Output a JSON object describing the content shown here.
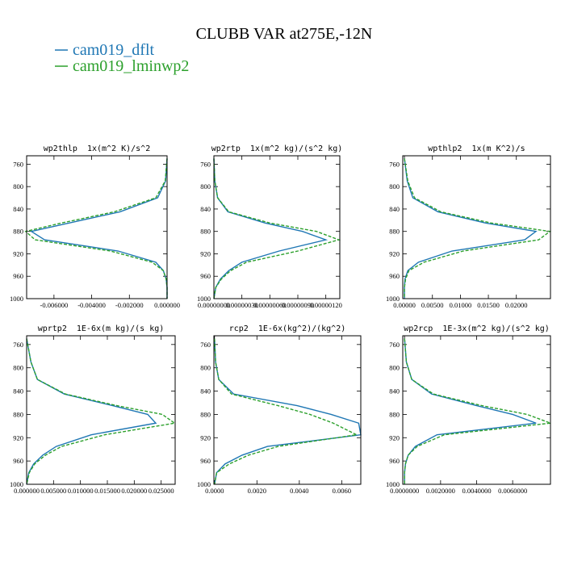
{
  "title": "CLUBB VAR at275E,-12N",
  "chart_data": [
    {
      "type": "line",
      "title": "wp2thlp  1x(m^2 K)/s^2",
      "y": [
        750,
        790,
        820,
        845,
        865,
        880,
        895,
        915,
        935,
        950,
        965,
        980,
        1000
      ],
      "ylim": [
        745,
        1000
      ],
      "yticks": [
        760,
        800,
        840,
        880,
        920,
        960,
        1000
      ],
      "xlim": [
        -0.00745,
        0.0
      ],
      "xticks": [
        {
          "value": -0.006,
          "label": "-0.006000"
        },
        {
          "value": -0.004,
          "label": "-0.004000"
        },
        {
          "value": -0.002,
          "label": "-0.002000"
        },
        {
          "value": 0,
          "label": "0.000000"
        }
      ],
      "series": [
        {
          "name": "cam019_dflt",
          "color": "#1f77b4",
          "linestyle": "solid",
          "values": [
            0,
            -8e-05,
            -0.0005,
            -0.0025,
            -0.0052,
            -0.0072,
            -0.0065,
            -0.0026,
            -0.0006,
            -0.0002,
            -5e-05,
            0,
            0
          ]
        },
        {
          "name": "cam019_lminwp2",
          "color": "#2ca02c",
          "linestyle": "dashed",
          "values": [
            0,
            -0.0001,
            -0.0006,
            -0.0028,
            -0.0056,
            -0.0075,
            -0.007,
            -0.003,
            -0.0008,
            -0.0002,
            -5e-05,
            0,
            0
          ]
        }
      ]
    },
    {
      "type": "line",
      "title": "wp2rtp  1x(m^2 kg)/(s^2 kg)",
      "y": [
        750,
        790,
        820,
        845,
        865,
        880,
        895,
        915,
        935,
        950,
        965,
        980,
        1000
      ],
      "ylim": [
        745,
        1000
      ],
      "yticks": [
        760,
        800,
        840,
        880,
        920,
        960,
        1000
      ],
      "xlim": [
        0,
        1.35e-06
      ],
      "xticks": [
        {
          "value": 0,
          "label": "0.00000000"
        },
        {
          "value": 3e-07,
          "label": "0.00000030"
        },
        {
          "value": 6e-07,
          "label": "0.00000060"
        },
        {
          "value": 9e-07,
          "label": "0.00000090"
        },
        {
          "value": 1.2e-06,
          "label": "0.00000120"
        }
      ],
      "series": [
        {
          "color": "#1f77b4",
          "linestyle": "solid",
          "values": [
            0,
            1e-08,
            4e-08,
            1.5e-07,
            5.5e-07,
            9.5e-07,
            1.2e-06,
            7e-07,
            3e-07,
            1.6e-07,
            7e-08,
            2e-08,
            0
          ]
        },
        {
          "color": "#2ca02c",
          "linestyle": "dashed",
          "values": [
            0,
            1e-08,
            4e-08,
            1.6e-07,
            6e-07,
            1.1e-06,
            1.34e-06,
            9e-07,
            3.5e-07,
            1.8e-07,
            8e-08,
            2e-08,
            0
          ]
        }
      ]
    },
    {
      "type": "line",
      "title": "wpthlp2  1x(m K^2)/s",
      "y": [
        750,
        790,
        820,
        845,
        865,
        880,
        895,
        915,
        935,
        950,
        965,
        980,
        1000
      ],
      "ylim": [
        745,
        1000
      ],
      "yticks": [
        760,
        800,
        840,
        880,
        920,
        960,
        1000
      ],
      "xlim": [
        -0.0003,
        0.0261
      ],
      "xticks": [
        {
          "value": 0,
          "label": "0.00000"
        },
        {
          "value": 0.005,
          "label": "0.00500"
        },
        {
          "value": 0.01,
          "label": "0.01000"
        },
        {
          "value": 0.015,
          "label": "0.01500"
        },
        {
          "value": 0.02,
          "label": "0.02000"
        }
      ],
      "series": [
        {
          "color": "#1f77b4",
          "linestyle": "solid",
          "values": [
            0,
            0.0005,
            0.0015,
            0.006,
            0.0145,
            0.0235,
            0.0215,
            0.0085,
            0.0025,
            0.0006,
            0.0001,
            0,
            0
          ]
        },
        {
          "color": "#2ca02c",
          "linestyle": "dashed",
          "values": [
            0,
            0.0006,
            0.0018,
            0.0065,
            0.0155,
            0.026,
            0.024,
            0.0105,
            0.0035,
            0.0008,
            0.0002,
            0,
            0
          ]
        }
      ]
    },
    {
      "type": "line",
      "title": "wprtp2  1E-6x(m kg)/(s kg)",
      "y": [
        750,
        790,
        820,
        845,
        865,
        880,
        895,
        915,
        935,
        950,
        965,
        980,
        1000
      ],
      "ylim": [
        745,
        1000
      ],
      "yticks": [
        760,
        800,
        840,
        880,
        920,
        960,
        1000
      ],
      "xlim": [
        0,
        0.0276
      ],
      "xticks": [
        {
          "value": 0,
          "label": "0.000000"
        },
        {
          "value": 0.005,
          "label": "0.005000"
        },
        {
          "value": 0.01,
          "label": "0.010000"
        },
        {
          "value": 0.015,
          "label": "0.015000"
        },
        {
          "value": 0.02,
          "label": "0.020000"
        },
        {
          "value": 0.025,
          "label": "0.025000"
        }
      ],
      "series": [
        {
          "color": "#1f77b4",
          "linestyle": "solid",
          "values": [
            0,
            0.0008,
            0.002,
            0.007,
            0.016,
            0.0225,
            0.024,
            0.012,
            0.0055,
            0.003,
            0.0013,
            0.0004,
            0
          ]
        },
        {
          "color": "#2ca02c",
          "linestyle": "dashed",
          "values": [
            0,
            0.0008,
            0.002,
            0.0072,
            0.0168,
            0.0252,
            0.0275,
            0.0145,
            0.0065,
            0.0035,
            0.0015,
            0.0005,
            0
          ]
        }
      ]
    },
    {
      "type": "line",
      "title": "rcp2  1E-6x(kg^2)/(kg^2)",
      "y": [
        750,
        790,
        820,
        845,
        865,
        880,
        895,
        915,
        935,
        950,
        965,
        980,
        1000
      ],
      "ylim": [
        745,
        1000
      ],
      "yticks": [
        760,
        800,
        840,
        880,
        920,
        960,
        1000
      ],
      "xlim": [
        -3e-05,
        0.0069
      ],
      "xticks": [
        {
          "value": 0,
          "label": "0.0000"
        },
        {
          "value": 0.002,
          "label": "0.0020"
        },
        {
          "value": 0.004,
          "label": "0.0040"
        },
        {
          "value": 0.006,
          "label": "0.0060"
        }
      ],
      "series": [
        {
          "color": "#1f77b4",
          "linestyle": "solid",
          "values": [
            0,
            5e-05,
            0.0002,
            0.0009,
            0.0039,
            0.0055,
            0.0068,
            0.0069,
            0.0025,
            0.0013,
            0.0005,
            0.0001,
            0
          ]
        },
        {
          "color": "#2ca02c",
          "linestyle": "dashed",
          "values": [
            0,
            5e-05,
            0.0002,
            0.0008,
            0.003,
            0.0045,
            0.0056,
            0.0067,
            0.003,
            0.0016,
            0.0007,
            0.0001,
            0
          ]
        }
      ]
    },
    {
      "type": "line",
      "title": "wp2rcp  1E-3x(m^2 kg)/(s^2 kg)",
      "y": [
        750,
        790,
        820,
        845,
        865,
        880,
        895,
        915,
        935,
        950,
        965,
        980,
        1000
      ],
      "ylim": [
        745,
        1000
      ],
      "yticks": [
        760,
        800,
        840,
        880,
        920,
        960,
        1000
      ],
      "xlim": [
        -0.0001,
        0.0081
      ],
      "xticks": [
        {
          "value": 0,
          "label": "0.0000000"
        },
        {
          "value": 0.002,
          "label": "0.0020000"
        },
        {
          "value": 0.004,
          "label": "0.0040000"
        },
        {
          "value": 0.006,
          "label": "0.0060000"
        }
      ],
      "series": [
        {
          "color": "#1f77b4",
          "linestyle": "solid",
          "values": [
            0,
            0.0001,
            0.0004,
            0.0015,
            0.004,
            0.006,
            0.0073,
            0.0018,
            0.0006,
            0.0002,
            5e-05,
            0,
            0
          ]
        },
        {
          "color": "#2ca02c",
          "linestyle": "dashed",
          "values": [
            0,
            0.0001,
            0.0004,
            0.0016,
            0.0043,
            0.0068,
            0.0081,
            0.0022,
            0.0007,
            0.0002,
            5e-05,
            0,
            0
          ]
        }
      ]
    }
  ]
}
